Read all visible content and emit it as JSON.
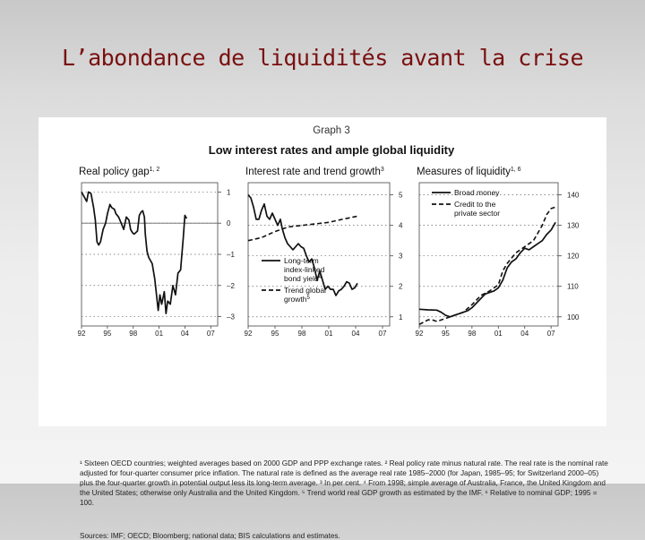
{
  "slide": {
    "title": "L’abondance de liquidités avant la crise"
  },
  "figure": {
    "label": "Graph 3",
    "title": "Low interest rates and ample global liquidity",
    "footnotes": "¹ Sixteen OECD countries; weighted averages based on 2000 GDP and PPP exchange rates.   ² Real policy rate minus natural rate. The real rate is the nominal rate adjusted for four-quarter consumer price inflation. The natural rate is defined as the average real rate 1985–2000 (for Japan, 1985–95; for Switzerland 2000–05) plus the four-quarter growth in potential output less its long-term average.   ³ In per cent.   ⁴ From 1998; simple average of Australia, France, the United Kingdom and the United States; otherwise only Australia and the United Kingdom.   ⁵ Trend world real GDP growth as estimated by the IMF.   ⁶ Relative to nominal GDP; 1995 = 100.",
    "sources": "Sources: IMF; OECD; Bloomberg; national data; BIS calculations and estimates."
  },
  "chart_data": [
    {
      "type": "line",
      "title": "Real policy gap",
      "title_sup": "1, 2",
      "y_side": "right",
      "ylim": [
        -3.3,
        1.3
      ],
      "yticks": [
        1,
        0,
        -1,
        -2,
        -3
      ],
      "ytick_labels": [
        "1",
        "0",
        "–1",
        "–2",
        "–3"
      ],
      "xlim": [
        1992,
        2007.8
      ],
      "xticks": [
        1992,
        1995,
        1998,
        2001,
        2004,
        2007
      ],
      "xtick_labels": [
        "92",
        "95",
        "98",
        "01",
        "04",
        "07"
      ],
      "zero_line": 0,
      "series": [
        {
          "values": [
            [
              1992,
              1.0
            ],
            [
              1992.3,
              0.85
            ],
            [
              1992.6,
              0.7
            ],
            [
              1992.8,
              1.0
            ],
            [
              1993.1,
              0.95
            ],
            [
              1993.4,
              0.5
            ],
            [
              1993.6,
              0.1
            ],
            [
              1993.8,
              -0.6
            ],
            [
              1994.0,
              -0.7
            ],
            [
              1994.2,
              -0.6
            ],
            [
              1994.5,
              -0.2
            ],
            [
              1994.8,
              0.0
            ],
            [
              1995.0,
              0.3
            ],
            [
              1995.3,
              0.6
            ],
            [
              1995.5,
              0.5
            ],
            [
              1995.8,
              0.45
            ],
            [
              1996.0,
              0.3
            ],
            [
              1996.3,
              0.2
            ],
            [
              1996.6,
              0.0
            ],
            [
              1996.9,
              -0.2
            ],
            [
              1997.2,
              0.2
            ],
            [
              1997.5,
              0.1
            ],
            [
              1997.7,
              -0.2
            ],
            [
              1997.9,
              -0.3
            ],
            [
              1998.1,
              -0.35
            ],
            [
              1998.3,
              -0.3
            ],
            [
              1998.5,
              -0.25
            ],
            [
              1998.7,
              0.25
            ],
            [
              1998.9,
              0.35
            ],
            [
              1999.1,
              0.4
            ],
            [
              1999.3,
              0.2
            ],
            [
              1999.4,
              -0.35
            ],
            [
              1999.6,
              -0.9
            ],
            [
              1999.8,
              -1.1
            ],
            [
              2000.0,
              -1.2
            ],
            [
              2000.2,
              -1.3
            ],
            [
              2000.5,
              -1.8
            ],
            [
              2000.7,
              -2.3
            ],
            [
              2000.9,
              -2.8
            ],
            [
              2001.1,
              -2.3
            ],
            [
              2001.3,
              -2.6
            ],
            [
              2001.6,
              -2.2
            ],
            [
              2001.8,
              -2.9
            ],
            [
              2002.0,
              -2.5
            ],
            [
              2002.3,
              -2.6
            ],
            [
              2002.6,
              -2.0
            ],
            [
              2002.9,
              -2.3
            ],
            [
              2003.2,
              -1.6
            ],
            [
              2003.5,
              -1.5
            ],
            [
              2003.8,
              -0.5
            ],
            [
              2004.0,
              0.25
            ],
            [
              2004.2,
              0.15
            ]
          ]
        }
      ]
    },
    {
      "type": "line",
      "title": "Interest rate and trend growth",
      "title_sup": "3",
      "y_side": "right",
      "ylim": [
        0.7,
        5.4
      ],
      "yticks": [
        5,
        4,
        3,
        2,
        1
      ],
      "ytick_labels": [
        "5",
        "4",
        "3",
        "2",
        "1"
      ],
      "xlim": [
        1992,
        2007.8
      ],
      "xticks": [
        1992,
        1995,
        1998,
        2001,
        2004,
        2007
      ],
      "xtick_labels": [
        "92",
        "95",
        "98",
        "01",
        "04",
        "07"
      ],
      "legend": [
        {
          "label": "Long-term index-linked bond yield",
          "sup": "4",
          "style": "solid"
        },
        {
          "label": "Trend global growth",
          "sup": "5",
          "style": "dashed"
        }
      ],
      "series": [
        {
          "name": "Long-term index-linked bond yield",
          "style": "solid",
          "values": [
            [
              1992,
              5.0
            ],
            [
              1992.3,
              4.9
            ],
            [
              1992.6,
              4.6
            ],
            [
              1992.9,
              4.2
            ],
            [
              1993.2,
              4.2
            ],
            [
              1993.5,
              4.5
            ],
            [
              1993.8,
              4.7
            ],
            [
              1994.1,
              4.3
            ],
            [
              1994.4,
              4.2
            ],
            [
              1994.7,
              4.4
            ],
            [
              1995.0,
              4.2
            ],
            [
              1995.3,
              4.0
            ],
            [
              1995.6,
              4.2
            ],
            [
              1995.8,
              3.9
            ],
            [
              1996.1,
              3.6
            ],
            [
              1996.4,
              3.4
            ],
            [
              1996.7,
              3.3
            ],
            [
              1997.0,
              3.2
            ],
            [
              1997.3,
              3.3
            ],
            [
              1997.6,
              3.4
            ],
            [
              1997.9,
              3.3
            ],
            [
              1998.2,
              3.25
            ],
            [
              1998.5,
              3.0
            ],
            [
              1998.8,
              2.8
            ],
            [
              1999.1,
              2.9
            ],
            [
              1999.4,
              2.6
            ],
            [
              1999.7,
              2.2
            ],
            [
              2000.0,
              2.5
            ],
            [
              2000.3,
              2.2
            ],
            [
              2000.6,
              1.9
            ],
            [
              2000.9,
              2.0
            ],
            [
              2001.2,
              1.9
            ],
            [
              2001.5,
              1.9
            ],
            [
              2001.8,
              1.7
            ],
            [
              2002.1,
              1.85
            ],
            [
              2002.4,
              1.9
            ],
            [
              2002.7,
              2.0
            ],
            [
              2003.0,
              2.15
            ],
            [
              2003.3,
              2.1
            ],
            [
              2003.6,
              1.9
            ],
            [
              2003.9,
              1.95
            ],
            [
              2004.2,
              2.1
            ]
          ]
        },
        {
          "name": "Trend global growth",
          "style": "dashed",
          "values": [
            [
              1992,
              3.5
            ],
            [
              1993.5,
              3.6
            ],
            [
              1995,
              3.8
            ],
            [
              1996.5,
              3.95
            ],
            [
              1998,
              4.0
            ],
            [
              1999.5,
              4.05
            ],
            [
              2001,
              4.1
            ],
            [
              2002.5,
              4.2
            ],
            [
              2004.2,
              4.3
            ]
          ]
        }
      ]
    },
    {
      "type": "line",
      "title": "Measures of liquidity",
      "title_sup": "1, 6",
      "y_side": "right",
      "ylim": [
        97,
        144
      ],
      "yticks": [
        140,
        130,
        120,
        110,
        100
      ],
      "ytick_labels": [
        "140",
        "130",
        "120",
        "110",
        "100"
      ],
      "xlim": [
        1992,
        2007.8
      ],
      "xticks": [
        1992,
        1995,
        1998,
        2001,
        2004,
        2007
      ],
      "xtick_labels": [
        "92",
        "95",
        "98",
        "01",
        "04",
        "07"
      ],
      "legend": [
        {
          "label": "Broad money",
          "sup": "",
          "style": "solid"
        },
        {
          "label": "Credit to the private sector",
          "sup": "",
          "style": "dashed"
        }
      ],
      "series": [
        {
          "name": "Broad money",
          "style": "solid",
          "values": [
            [
              1992,
              102.5
            ],
            [
              1993,
              102.3
            ],
            [
              1994,
              102.2
            ],
            [
              1994.5,
              101.5
            ],
            [
              1995,
              100.5
            ],
            [
              1995.5,
              100.0
            ],
            [
              1996,
              100.5
            ],
            [
              1996.5,
              101.0
            ],
            [
              1997,
              101.5
            ],
            [
              1997.5,
              102.0
            ],
            [
              1998,
              103.0
            ],
            [
              1998.5,
              104.5
            ],
            [
              1999,
              106.0
            ],
            [
              1999.5,
              107.5
            ],
            [
              2000,
              108.0
            ],
            [
              2000.5,
              108.5
            ],
            [
              2001,
              109.5
            ],
            [
              2001.5,
              112.0
            ],
            [
              2002,
              116.0
            ],
            [
              2002.5,
              118.0
            ],
            [
              2003,
              119.0
            ],
            [
              2003.5,
              121.0
            ],
            [
              2004,
              122.5
            ],
            [
              2004.5,
              122.0
            ],
            [
              2005,
              123.0
            ],
            [
              2005.5,
              124.0
            ],
            [
              2006,
              125.0
            ],
            [
              2006.5,
              127.0
            ],
            [
              2007,
              128.5
            ],
            [
              2007.5,
              131.0
            ]
          ]
        },
        {
          "name": "Credit to the private sector",
          "style": "dashed",
          "values": [
            [
              1992,
              97.5
            ],
            [
              1993,
              99.0
            ],
            [
              1993.5,
              99.0
            ],
            [
              1994,
              98.5
            ],
            [
              1995,
              99.5
            ],
            [
              1996,
              100.5
            ],
            [
              1997,
              101.5
            ],
            [
              1998,
              104.0
            ],
            [
              1998.5,
              105.5
            ],
            [
              1999,
              107.0
            ],
            [
              2000,
              108.5
            ],
            [
              2001,
              110.5
            ],
            [
              2001.5,
              115.0
            ],
            [
              2002,
              117.5
            ],
            [
              2003,
              121.0
            ],
            [
              2003.5,
              122.0
            ],
            [
              2004,
              123.0
            ],
            [
              2005,
              125.0
            ],
            [
              2006,
              130.0
            ],
            [
              2006.5,
              133.5
            ],
            [
              2007,
              135.5
            ],
            [
              2007.5,
              136.0
            ]
          ]
        }
      ]
    }
  ]
}
